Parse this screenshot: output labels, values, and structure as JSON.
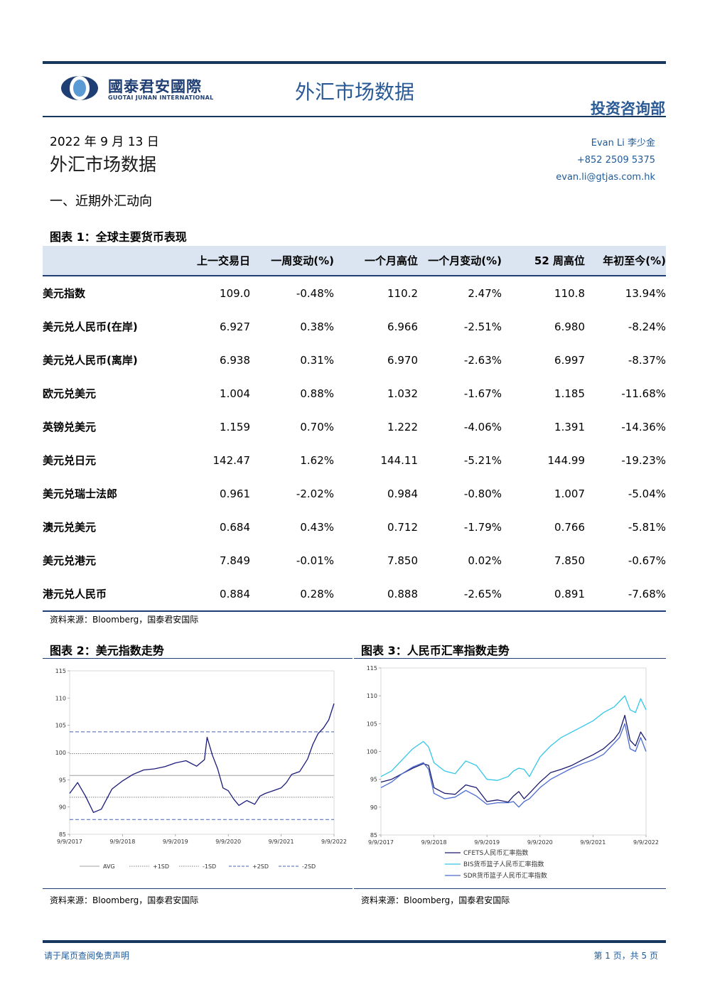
{
  "header": {
    "logo_cn": "國泰君安國際",
    "logo_en": "GUOTAI JUNAN INTERNATIONAL",
    "title": "外汇市场数据",
    "department": "投资咨询部"
  },
  "doc": {
    "date": "2022 年 9 月 13 日",
    "title": "外汇市场数据",
    "section": "一、近期外汇动向"
  },
  "author": {
    "name": "Evan Li  李少金",
    "phone": "+852 2509 5375",
    "email": "evan.li@gtjas.com.hk"
  },
  "table": {
    "title": "图表 1：全球主要货币表现",
    "headers": [
      "",
      "上一交易日",
      "一周变动(%)",
      "一个月高位",
      "一个月变动(%)",
      "52 周高位",
      "年初至今(%)"
    ],
    "rows": [
      [
        "美元指数",
        "109.0",
        "-0.48%",
        "110.2",
        "2.47%",
        "110.8",
        "13.94%"
      ],
      [
        "美元兑人民币(在岸)",
        "6.927",
        "0.38%",
        "6.966",
        "-2.51%",
        "6.980",
        "-8.24%"
      ],
      [
        "美元兑人民币(离岸)",
        "6.938",
        "0.31%",
        "6.970",
        "-2.63%",
        "6.997",
        "-8.37%"
      ],
      [
        "欧元兑美元",
        "1.004",
        "0.88%",
        "1.032",
        "-1.67%",
        "1.185",
        "-11.68%"
      ],
      [
        "英镑兑美元",
        "1.159",
        "0.70%",
        "1.222",
        "-4.06%",
        "1.391",
        "-14.36%"
      ],
      [
        "美元兑日元",
        "142.47",
        "1.62%",
        "144.11",
        "-5.21%",
        "144.99",
        "-19.23%"
      ],
      [
        "美元兑瑞士法郎",
        "0.961",
        "-2.02%",
        "0.984",
        "-0.80%",
        "1.007",
        "-5.04%"
      ],
      [
        "澳元兑美元",
        "0.684",
        "0.43%",
        "0.712",
        "-1.79%",
        "0.766",
        "-5.81%"
      ],
      [
        "美元兑港元",
        "7.849",
        "-0.01%",
        "7.850",
        "0.02%",
        "7.850",
        "-0.67%"
      ],
      [
        "港元兑人民币",
        "0.884",
        "0.28%",
        "0.888",
        "-2.65%",
        "0.891",
        "-7.68%"
      ]
    ],
    "source": "资料来源：Bloomberg，国泰君安国际"
  },
  "chart_data": [
    {
      "type": "line",
      "title": "图表 2：美元指数走势",
      "x_ticks": [
        "9/9/2017",
        "9/9/2018",
        "9/9/2019",
        "9/9/2020",
        "9/9/2021",
        "9/9/2022"
      ],
      "ylim": [
        85,
        115
      ],
      "y_ticks": [
        "85",
        "90",
        "95",
        "100",
        "105",
        "110",
        "115"
      ],
      "series": [
        {
          "name": "",
          "color": "#1a1a7a",
          "points": [
            [
              0,
              92.5
            ],
            [
              0.15,
              94.5
            ],
            [
              0.3,
              92.0
            ],
            [
              0.45,
              89.0
            ],
            [
              0.6,
              89.6
            ],
            [
              0.8,
              93.3
            ],
            [
              1.0,
              94.8
            ],
            [
              1.2,
              96.0
            ],
            [
              1.4,
              96.8
            ],
            [
              1.6,
              97.0
            ],
            [
              1.8,
              97.4
            ],
            [
              2.0,
              98.1
            ],
            [
              2.2,
              98.5
            ],
            [
              2.4,
              97.5
            ],
            [
              2.55,
              98.7
            ],
            [
              2.6,
              102.8
            ],
            [
              2.7,
              99.5
            ],
            [
              2.8,
              97.0
            ],
            [
              2.9,
              93.5
            ],
            [
              3.0,
              93.0
            ],
            [
              3.1,
              91.5
            ],
            [
              3.2,
              90.3
            ],
            [
              3.35,
              91.2
            ],
            [
              3.5,
              90.5
            ],
            [
              3.6,
              92.0
            ],
            [
              3.7,
              92.5
            ],
            [
              3.85,
              93.0
            ],
            [
              4.0,
              93.5
            ],
            [
              4.1,
              94.5
            ],
            [
              4.2,
              96.0
            ],
            [
              4.35,
              96.5
            ],
            [
              4.5,
              98.8
            ],
            [
              4.6,
              101.5
            ],
            [
              4.7,
              103.5
            ],
            [
              4.8,
              104.5
            ],
            [
              4.9,
              106.0
            ],
            [
              5.0,
              109.0
            ]
          ]
        }
      ],
      "reference_lines": [
        {
          "name": "AVG",
          "value": 95.8,
          "style": "solid",
          "color": "#a0a0a0"
        },
        {
          "name": "+1SD",
          "value": 99.8,
          "style": "dotted",
          "color": "#808080"
        },
        {
          "name": "-1SD",
          "value": 91.8,
          "style": "dotted",
          "color": "#808080"
        },
        {
          "name": "+2SD",
          "value": 103.8,
          "style": "dashed",
          "color": "#4060b0"
        },
        {
          "name": "-2SD",
          "value": 87.7,
          "style": "dashed",
          "color": "#4060b0"
        }
      ],
      "source": "资料来源：Bloomberg，国泰君安国际"
    },
    {
      "type": "line",
      "title": "图表 3：人民币汇率指数走势",
      "x_ticks": [
        "9/9/2017",
        "9/9/2018",
        "9/9/2019",
        "9/9/2020",
        "9/9/2021",
        "9/9/2022"
      ],
      "ylim": [
        85,
        115
      ],
      "y_ticks": [
        "85",
        "90",
        "95",
        "100",
        "105",
        "110",
        "115"
      ],
      "series": [
        {
          "name": "CFETS人民币汇率指数",
          "color": "#1a1a6e",
          "points": [
            [
              0,
              94.5
            ],
            [
              0.2,
              95.0
            ],
            [
              0.4,
              96.0
            ],
            [
              0.6,
              97.0
            ],
            [
              0.8,
              97.8
            ],
            [
              0.9,
              97.5
            ],
            [
              1.0,
              93.5
            ],
            [
              1.2,
              92.5
            ],
            [
              1.4,
              92.3
            ],
            [
              1.6,
              94.0
            ],
            [
              1.8,
              93.5
            ],
            [
              2.0,
              91.0
            ],
            [
              2.2,
              91.3
            ],
            [
              2.4,
              90.9
            ],
            [
              2.5,
              92.0
            ],
            [
              2.6,
              92.8
            ],
            [
              2.7,
              91.5
            ],
            [
              2.8,
              92.5
            ],
            [
              3.0,
              94.5
            ],
            [
              3.2,
              96.2
            ],
            [
              3.4,
              96.8
            ],
            [
              3.6,
              97.5
            ],
            [
              3.8,
              98.5
            ],
            [
              4.0,
              99.4
            ],
            [
              4.2,
              100.5
            ],
            [
              4.4,
              102.2
            ],
            [
              4.5,
              103.5
            ],
            [
              4.6,
              106.5
            ],
            [
              4.7,
              102.0
            ],
            [
              4.8,
              101.0
            ],
            [
              4.9,
              103.5
            ],
            [
              5.0,
              102.0
            ]
          ]
        },
        {
          "name": "BIS货币篮子人民币汇率指数",
          "color": "#33c6e8",
          "points": [
            [
              0,
              95.5
            ],
            [
              0.2,
              96.5
            ],
            [
              0.4,
              98.5
            ],
            [
              0.6,
              100.5
            ],
            [
              0.8,
              101.8
            ],
            [
              0.9,
              100.8
            ],
            [
              1.0,
              98.0
            ],
            [
              1.2,
              96.5
            ],
            [
              1.4,
              96.0
            ],
            [
              1.6,
              98.3
            ],
            [
              1.8,
              97.5
            ],
            [
              2.0,
              95.0
            ],
            [
              2.2,
              94.8
            ],
            [
              2.4,
              95.5
            ],
            [
              2.5,
              96.5
            ],
            [
              2.6,
              97.0
            ],
            [
              2.7,
              96.8
            ],
            [
              2.8,
              95.5
            ],
            [
              3.0,
              99.0
            ],
            [
              3.2,
              101.0
            ],
            [
              3.4,
              102.5
            ],
            [
              3.6,
              103.5
            ],
            [
              3.8,
              104.5
            ],
            [
              4.0,
              105.5
            ],
            [
              4.2,
              107.0
            ],
            [
              4.4,
              108.0
            ],
            [
              4.5,
              109.0
            ],
            [
              4.6,
              110.0
            ],
            [
              4.7,
              107.5
            ],
            [
              4.8,
              107.0
            ],
            [
              4.9,
              109.5
            ],
            [
              5.0,
              107.5
            ]
          ]
        },
        {
          "name": "SDR货币篮子人民币汇率指数",
          "color": "#4a6ad0",
          "points": [
            [
              0,
              93.5
            ],
            [
              0.2,
              94.5
            ],
            [
              0.4,
              96.0
            ],
            [
              0.6,
              97.2
            ],
            [
              0.8,
              98.0
            ],
            [
              0.9,
              96.8
            ],
            [
              1.0,
              92.5
            ],
            [
              1.2,
              91.5
            ],
            [
              1.4,
              91.8
            ],
            [
              1.6,
              93.0
            ],
            [
              1.8,
              92.0
            ],
            [
              2.0,
              90.5
            ],
            [
              2.2,
              90.8
            ],
            [
              2.4,
              90.8
            ],
            [
              2.5,
              91.0
            ],
            [
              2.6,
              90.0
            ],
            [
              2.7,
              91.0
            ],
            [
              2.8,
              91.5
            ],
            [
              3.0,
              93.5
            ],
            [
              3.2,
              95.0
            ],
            [
              3.4,
              96.0
            ],
            [
              3.6,
              97.0
            ],
            [
              3.8,
              97.8
            ],
            [
              4.0,
              98.5
            ],
            [
              4.2,
              99.5
            ],
            [
              4.4,
              101.5
            ],
            [
              4.5,
              102.5
            ],
            [
              4.6,
              105.0
            ],
            [
              4.7,
              100.5
            ],
            [
              4.8,
              100.0
            ],
            [
              4.9,
              102.5
            ],
            [
              5.0,
              100.0
            ]
          ]
        }
      ],
      "source": "资料来源：Bloomberg，国泰君安国际"
    }
  ],
  "footer": {
    "disclaimer": "请于尾页查阅免责声明",
    "page": "第 1 页，共 5 页"
  }
}
